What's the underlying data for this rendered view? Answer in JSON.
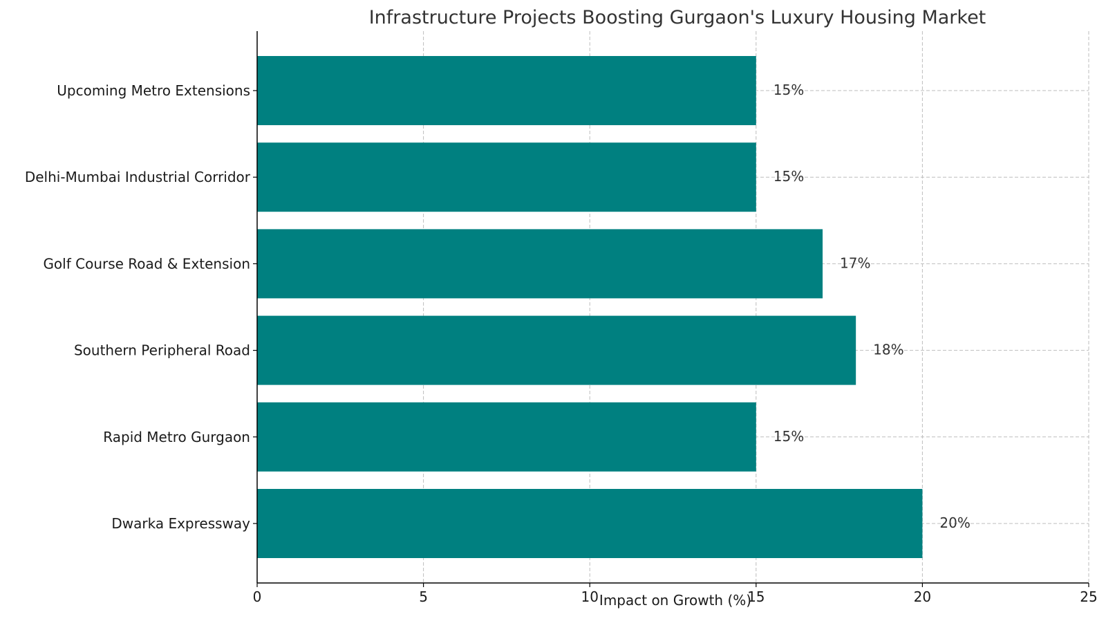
{
  "chart_data": {
    "type": "bar",
    "orientation": "horizontal",
    "title": "Infrastructure Projects Boosting Gurgaon's Luxury Housing Market",
    "xlabel": "Impact on Growth (%)",
    "ylabel": "",
    "categories": [
      "Dwarka Expressway",
      "Rapid Metro Gurgaon",
      "Southern Peripheral Road",
      "Golf Course Road & Extension",
      "Delhi-Mumbai Industrial Corridor",
      "Upcoming Metro Extensions"
    ],
    "values": [
      20,
      15,
      18,
      17,
      15,
      15
    ],
    "data_labels": [
      "20%",
      "15%",
      "18%",
      "17%",
      "15%",
      "15%"
    ],
    "xlim": [
      0,
      25
    ],
    "xticks": [
      0,
      5,
      10,
      15,
      20,
      25
    ],
    "xtick_labels": [
      "0",
      "5",
      "10",
      "15",
      "20",
      "25"
    ],
    "grid": true,
    "bar_color": "#008080"
  }
}
